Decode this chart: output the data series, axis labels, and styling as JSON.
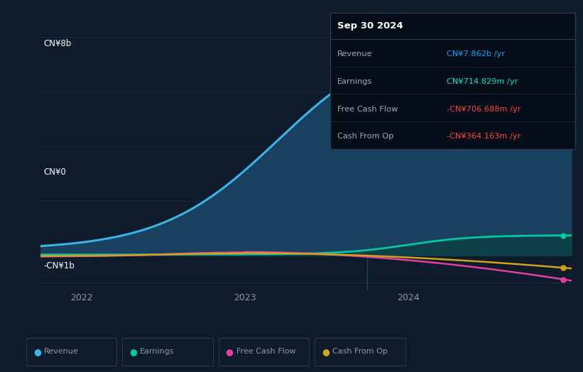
{
  "background_color": "#0d1b2a",
  "plot_bg_color": "#0d1b2a",
  "ylabel_top": "CN¥8b",
  "ylabel_zero": "CN¥0",
  "ylabel_bottom": "-CN¥1b",
  "x_ticks": [
    2022,
    2023,
    2024
  ],
  "x_min": 2021.75,
  "x_max": 2025.0,
  "y_min": -1250000000.0,
  "y_max": 8800000000.0,
  "separator_x": 2023.75,
  "info_box": {
    "title": "Sep 30 2024",
    "rows": [
      {
        "label": "Revenue",
        "value": "CN¥7.862b /yr",
        "value_color": "#00aaff"
      },
      {
        "label": "Earnings",
        "value": "CN¥714.829m /yr",
        "value_color": "#00e5cc"
      },
      {
        "label": "Free Cash Flow",
        "value": "-CN¥706.688m /yr",
        "value_color": "#ff4444"
      },
      {
        "label": "Cash From Op",
        "value": "-CN¥364.163m /yr",
        "value_color": "#ff4444"
      }
    ]
  },
  "revenue_color": "#3ab5e6",
  "revenue_fill": "#1a4060",
  "earnings_color": "#00c8a0",
  "fcf_color": "#e040a0",
  "cashop_color": "#d4a020",
  "earnings_fill": "#0a4040",
  "grid_color": "#1a2d3d",
  "separator_color": "#2a4060",
  "zero_line_color": "#445566",
  "label_color": "#8899aa",
  "legend_border_color": "#2a3a4a"
}
